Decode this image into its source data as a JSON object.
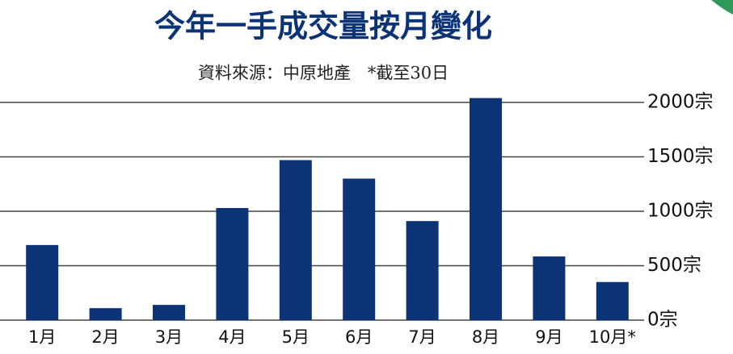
{
  "chart_data": {
    "type": "bar",
    "title": "今年一手成交量按月變化",
    "subtitle": "資料來源：中原地產　*截至30日",
    "categories": [
      "1月",
      "2月",
      "3月",
      "4月",
      "5月",
      "6月",
      "7月",
      "8月",
      "9月",
      "10月*"
    ],
    "values": [
      690,
      110,
      140,
      1030,
      1470,
      1300,
      910,
      2040,
      585,
      350
    ],
    "color": "#0d3377",
    "ylim": [
      0,
      2100
    ],
    "yticks": [
      {
        "value": 0,
        "label": "0宗"
      },
      {
        "value": 500,
        "label": "500宗"
      },
      {
        "value": 1000,
        "label": "1000宗"
      },
      {
        "value": 1500,
        "label": "1500宗"
      },
      {
        "value": 2000,
        "label": "2000宗"
      }
    ],
    "grid": true
  }
}
